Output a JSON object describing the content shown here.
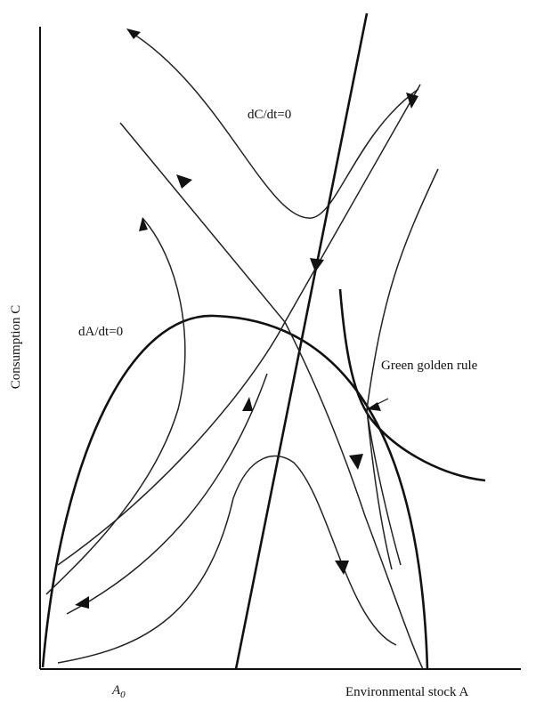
{
  "labels": {
    "dc_dt": "dC/dt=0",
    "da_dt": "dA/dt=0",
    "green_golden_rule": "Green golden rule",
    "y_axis": "Consumption C",
    "x_axis": "Environmental stock A",
    "a0": {
      "base": "A",
      "sub": "0"
    }
  }
}
